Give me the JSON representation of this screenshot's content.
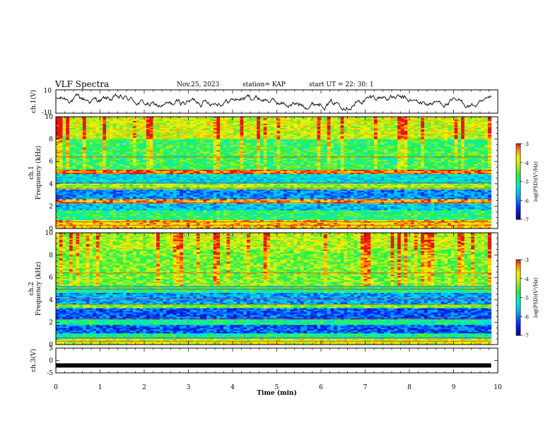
{
  "header": {
    "title": "VLF Spectra",
    "date": "Nov.25, 2023",
    "station": "station= KAP",
    "start": "start  UT  =   22: 30: 1"
  },
  "chart_data": [
    {
      "type": "line",
      "panel": "ch1-waveform",
      "ylabel": "ch.1(V)",
      "ylim": [
        -10,
        10
      ],
      "yticks": [
        "10",
        "-10"
      ],
      "xlim": [
        0,
        10
      ],
      "color": "#000000"
    },
    {
      "type": "heatmap",
      "panel": "ch1-spectrogram",
      "ylabel": "ch.1\nFrequency (kHz)",
      "ylim": [
        0,
        10
      ],
      "yticks": [
        "0",
        "2",
        "4",
        "6",
        "8",
        "10"
      ],
      "xlim": [
        0,
        9.85
      ],
      "colorbar": {
        "label": "log(PSD)(V²/Hz)",
        "range": [
          -7,
          -3
        ],
        "ticks": [
          "-3",
          "-4",
          "-5",
          "-6",
          "-7"
        ]
      },
      "bands": [
        {
          "from": 0,
          "to": 0.7,
          "level": -3.6
        },
        {
          "from": 0.7,
          "to": 1.6,
          "level": -4.8
        },
        {
          "from": 1.6,
          "to": 2.2,
          "level": -5.6
        },
        {
          "from": 2.2,
          "to": 2.6,
          "level": -3.4
        },
        {
          "from": 2.6,
          "to": 3.5,
          "level": -5.9
        },
        {
          "from": 3.5,
          "to": 4.0,
          "level": -4.2
        },
        {
          "from": 4.0,
          "to": 4.9,
          "level": -5.4
        },
        {
          "from": 4.9,
          "to": 5.3,
          "level": -3.3
        },
        {
          "from": 5.3,
          "to": 8.0,
          "level": -4.7
        },
        {
          "from": 8.0,
          "to": 10.0,
          "level": -4.0
        }
      ]
    },
    {
      "type": "heatmap",
      "panel": "ch2-spectrogram",
      "ylabel": "ch.2\nFrequency (kHz)",
      "ylim": [
        0,
        10
      ],
      "yticks": [
        "0",
        "2",
        "4",
        "6",
        "8",
        "10"
      ],
      "xlim": [
        0,
        9.85
      ],
      "colorbar": {
        "label": "log(PSD)(V²/Hz)",
        "range": [
          -7,
          -3
        ],
        "ticks": [
          "-3",
          "-4",
          "-5",
          "-6",
          "-7"
        ]
      },
      "bands": [
        {
          "from": 0,
          "to": 0.5,
          "level": -3.9
        },
        {
          "from": 0.5,
          "to": 1.0,
          "level": -5.0
        },
        {
          "from": 1.0,
          "to": 1.8,
          "level": -6.2
        },
        {
          "from": 1.8,
          "to": 2.2,
          "level": -5.0
        },
        {
          "from": 2.2,
          "to": 3.2,
          "level": -6.2
        },
        {
          "from": 3.2,
          "to": 3.6,
          "level": -4.4
        },
        {
          "from": 3.6,
          "to": 4.6,
          "level": -5.8
        },
        {
          "from": 4.6,
          "to": 5.2,
          "level": -4.9
        },
        {
          "from": 5.2,
          "to": 8.5,
          "level": -4.4
        },
        {
          "from": 8.5,
          "to": 10.0,
          "level": -4.1
        }
      ]
    },
    {
      "type": "line",
      "panel": "ch3-waveform",
      "ylabel": "ch.3(V)",
      "ylim": [
        -5,
        5
      ],
      "yticks": [
        "5",
        "0",
        "-5"
      ],
      "xlim": [
        0,
        10
      ],
      "level": -2,
      "color": "#000000"
    }
  ],
  "xaxis": {
    "label": "Time (min)",
    "range": [
      0,
      10
    ],
    "ticks": [
      "0",
      "1",
      "2",
      "3",
      "4",
      "5",
      "6",
      "7",
      "8",
      "9",
      "10"
    ]
  }
}
